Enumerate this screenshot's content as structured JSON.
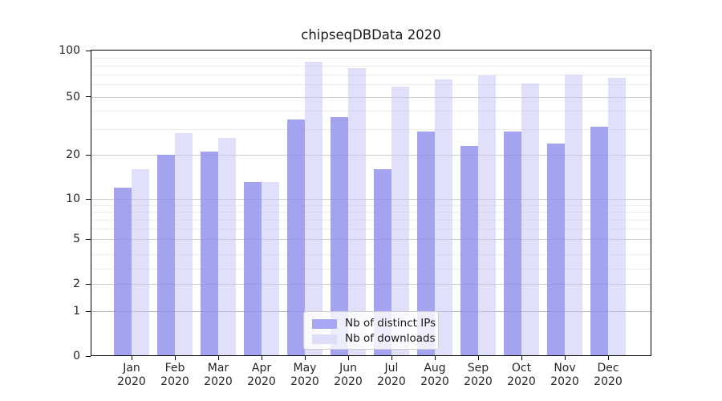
{
  "chart_data": {
    "type": "bar",
    "title": "chipseqDBData 2020",
    "categories": [
      "Jan 2020",
      "Feb 2020",
      "Mar 2020",
      "Apr 2020",
      "May 2020",
      "Jun 2020",
      "Jul 2020",
      "Aug 2020",
      "Sep 2020",
      "Oct 2020",
      "Nov 2020",
      "Dec 2020"
    ],
    "series": [
      {
        "name": "Nb of distinct IPs",
        "color": "rgba(143,143,237,0.82)",
        "color_solid": "#a6a6f2",
        "values": [
          12,
          20,
          21,
          13,
          35,
          36,
          16,
          29,
          23,
          29,
          24,
          31
        ]
      },
      {
        "name": "Nb of downloads",
        "color": "rgba(198,198,248,0.55)",
        "color_solid": "#dedefb",
        "values": [
          16,
          28,
          26,
          13,
          84,
          77,
          58,
          65,
          69,
          61,
          70,
          66
        ]
      }
    ],
    "xlabel": "",
    "ylabel": "",
    "yscale": "symlog",
    "ylim": [
      0,
      100
    ],
    "yticks": [
      0,
      1,
      2,
      5,
      10,
      20,
      50,
      100
    ],
    "yticks_minor": [
      3,
      4,
      6,
      7,
      8,
      9,
      30,
      40,
      60,
      70,
      80,
      90
    ],
    "grid": true,
    "legend_position": "lower center"
  },
  "colors": {
    "major_grid": "#cbcbcb",
    "minor_grid": "#ececec",
    "unit_grid": "#b3b3b3",
    "axis": "#000000",
    "text": "#262626"
  }
}
